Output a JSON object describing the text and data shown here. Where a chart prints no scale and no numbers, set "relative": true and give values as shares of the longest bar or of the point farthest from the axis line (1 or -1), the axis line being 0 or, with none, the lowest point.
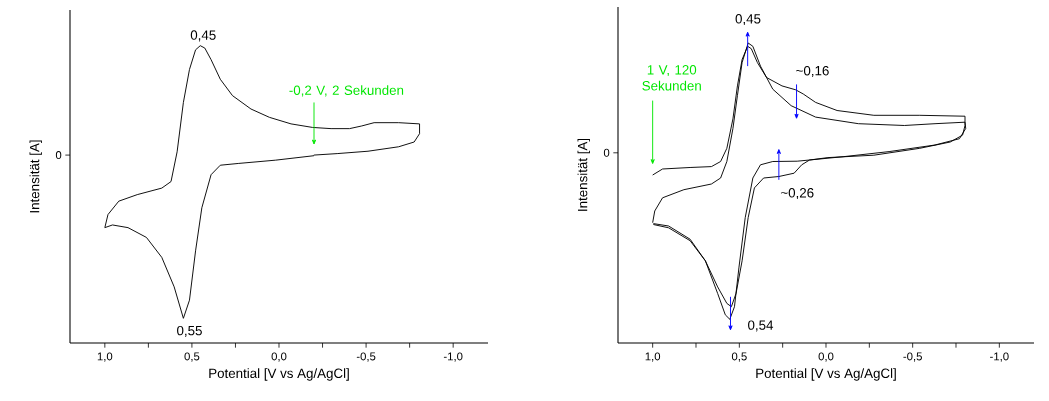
{
  "chart_data": [
    {
      "type": "line",
      "xlabel": "Potential [V vs Ag/AgCl]",
      "ylabel": "Intensität [A]",
      "relative": true,
      "xlim": [
        1.2,
        -1.2
      ],
      "xticks": [
        {
          "value": 1.0,
          "label": "1,0"
        },
        {
          "value": 0.75,
          "label": null
        },
        {
          "value": 0.5,
          "label": "0,5"
        },
        {
          "value": 0.25,
          "label": null
        },
        {
          "value": 0.0,
          "label": "0,0"
        },
        {
          "value": -0.25,
          "label": null
        },
        {
          "value": -0.5,
          "label": "-0,5"
        },
        {
          "value": -0.75,
          "label": null
        },
        {
          "value": -1.0,
          "label": "-1,0"
        }
      ],
      "series": [
        {
          "color": "#000000",
          "x": [
            -0.2,
            -0.334,
            -0.511,
            -0.687,
            -0.776,
            -0.807,
            -0.807,
            -0.687,
            -0.546,
            -0.475,
            -0.405,
            -0.299,
            -0.193,
            -0.069,
            0.055,
            0.161,
            0.267,
            0.337,
            0.39,
            0.426,
            0.452,
            0.479,
            0.514,
            0.549,
            0.585,
            0.62,
            0.673,
            0.814,
            0.92,
            0.982,
            1.0,
            0.956,
            0.867,
            0.761,
            0.673,
            0.602,
            0.549,
            0.514,
            0.479,
            0.443,
            0.39,
            0.337,
            0.231,
            0.019,
            -0.201
          ],
          "values": [
            0.632,
            0.637,
            0.645,
            0.66,
            0.676,
            0.704,
            0.737,
            0.741,
            0.741,
            0.73,
            0.721,
            0.721,
            0.725,
            0.737,
            0.759,
            0.787,
            0.832,
            0.887,
            0.953,
            0.992,
            1.0,
            0.986,
            0.92,
            0.809,
            0.643,
            0.543,
            0.521,
            0.499,
            0.477,
            0.432,
            0.388,
            0.397,
            0.388,
            0.355,
            0.288,
            0.189,
            0.083,
            0.144,
            0.31,
            0.455,
            0.566,
            0.598,
            0.604,
            0.615,
            0.63
          ]
        }
      ],
      "annotations": [
        "0",
        "0,45",
        "0,55",
        "-0,2 V, 2 Sekunden"
      ]
    },
    {
      "type": "line",
      "xlabel": "Potential [V vs Ag/AgCl]",
      "ylabel": "Intensität [A]",
      "relative": true,
      "xlim": [
        1.2,
        -1.2
      ],
      "xticks": [
        {
          "value": 1.0,
          "label": "1,0"
        },
        {
          "value": 0.75,
          "label": null
        },
        {
          "value": 0.5,
          "label": "0,5"
        },
        {
          "value": 0.25,
          "label": null
        },
        {
          "value": 0.0,
          "label": "0,0"
        },
        {
          "value": -0.25,
          "label": null
        },
        {
          "value": -0.5,
          "label": "-0,5"
        },
        {
          "value": -0.75,
          "label": null
        },
        {
          "value": -1.0,
          "label": "-1,0"
        }
      ],
      "series": [
        {
          "color": "#000000",
          "x": [
            1.0,
            0.943,
            0.784,
            0.661,
            0.608,
            0.572,
            0.537,
            0.511,
            0.484,
            0.452,
            0.431,
            0.396,
            0.343,
            0.254,
            0.175,
            0.131,
            0.06,
            -0.064,
            -0.276,
            -0.541,
            -0.802,
            -0.802,
            -0.788,
            -0.717,
            -0.541,
            -0.276,
            -0.011,
            0.095,
            0.14,
            0.184,
            0.272,
            0.36,
            0.413,
            0.449,
            0.484,
            0.519,
            0.546,
            0.572,
            0.625,
            0.696,
            0.784,
            0.908,
            0.996
          ],
          "values": [
            0.56,
            0.58,
            0.585,
            0.588,
            0.605,
            0.649,
            0.747,
            0.857,
            0.945,
            0.989,
            0.981,
            0.935,
            0.885,
            0.857,
            0.844,
            0.83,
            0.802,
            0.775,
            0.759,
            0.759,
            0.756,
            0.725,
            0.693,
            0.67,
            0.649,
            0.626,
            0.618,
            0.61,
            0.594,
            0.566,
            0.555,
            0.55,
            0.517,
            0.418,
            0.274,
            0.165,
            0.121,
            0.132,
            0.187,
            0.274,
            0.341,
            0.384,
            0.395
          ]
        },
        {
          "color": "#000000",
          "x": [
            1.0,
            0.988,
            0.943,
            0.82,
            0.661,
            0.608,
            0.572,
            0.537,
            0.511,
            0.484,
            0.449,
            0.422,
            0.378,
            0.307,
            0.201,
            0.06,
            -0.187,
            -0.452,
            -0.629,
            -0.802,
            -0.806,
            -0.77,
            -0.629,
            -0.364,
            -0.099,
            0.166,
            0.307,
            0.378,
            0.422,
            0.466,
            0.502,
            0.528,
            0.555,
            0.581,
            0.625,
            0.696,
            0.784,
            0.908,
            0.996
          ],
          "values": [
            0.401,
            0.44,
            0.484,
            0.511,
            0.53,
            0.55,
            0.605,
            0.715,
            0.825,
            0.935,
            1.0,
            0.989,
            0.923,
            0.846,
            0.791,
            0.753,
            0.731,
            0.725,
            0.731,
            0.736,
            0.715,
            0.681,
            0.66,
            0.638,
            0.621,
            0.606,
            0.605,
            0.594,
            0.55,
            0.418,
            0.253,
            0.121,
            0.079,
            0.094,
            0.165,
            0.274,
            0.346,
            0.39,
            0.398
          ]
        }
      ],
      "annotations": [
        "0",
        "0,45",
        "~0,16",
        "~0,26",
        "0,54",
        "1 V, 120 Sekunden"
      ]
    }
  ]
}
